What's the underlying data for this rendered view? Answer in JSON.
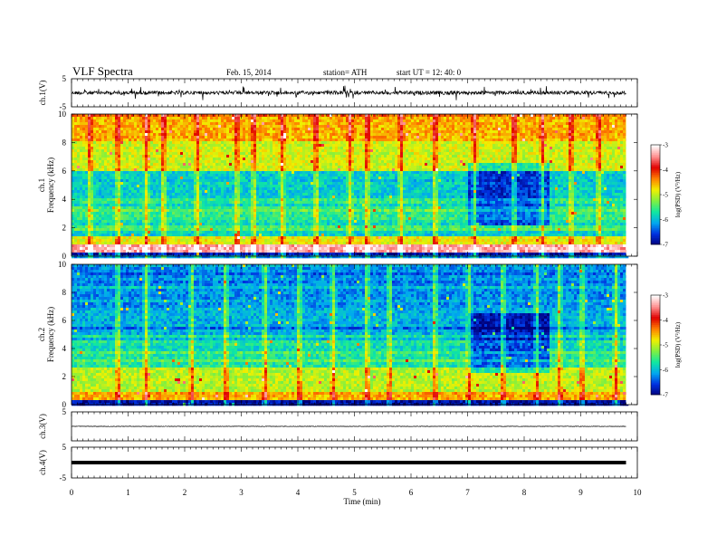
{
  "header": {
    "title": "VLF  Spectra",
    "date": "Feb. 15, 2014",
    "station": "station= ATH",
    "start_ut": "start  UT  =    12: 40: 0"
  },
  "chart_data": [
    {
      "type": "line",
      "panel": "ch1",
      "ylabel": "ch.1(V)",
      "ylim": [
        -5,
        5
      ],
      "y_ticks": [
        "5",
        "-5"
      ],
      "xlim": [
        0,
        10
      ],
      "baseline_v": 0,
      "trace_color": "#000000"
    },
    {
      "type": "heatmap",
      "panel": "ch1_spectrogram",
      "ylabel_lines": [
        "ch.1",
        "Frequency (kHz)"
      ],
      "ylim": [
        0,
        10
      ],
      "y_ticks": [
        "0",
        "2",
        "4",
        "6",
        "8",
        "10"
      ],
      "xlim": [
        0,
        10
      ],
      "data_extent_min": 9.8,
      "colorbar": {
        "label": "log(PSD) (V²/Hz)",
        "range": [
          -7,
          -3
        ],
        "ticks": [
          "-3",
          "-4",
          "-5",
          "-6",
          "-7"
        ]
      },
      "bands": [
        {
          "f": [
            0.0,
            0.3
          ],
          "level": 0.05
        },
        {
          "f": [
            0.3,
            0.8
          ],
          "level": 0.92
        },
        {
          "f": [
            0.8,
            1.4
          ],
          "level": 0.55
        },
        {
          "f": [
            1.4,
            4.2
          ],
          "level": 0.36
        },
        {
          "f": [
            4.2,
            6.0
          ],
          "level": 0.28
        },
        {
          "f": [
            6.0,
            8.0
          ],
          "level": 0.52
        },
        {
          "f": [
            8.0,
            10.0
          ],
          "level": 0.62
        }
      ],
      "quiet_interval_min": [
        7.0,
        8.4
      ],
      "burst_times_min": [
        0.3,
        0.8,
        1.3,
        1.6,
        2.2,
        2.9,
        3.2,
        3.7,
        4.3,
        4.9,
        5.2,
        5.8,
        6.4,
        7.1,
        7.8,
        8.3,
        8.8,
        9.3
      ]
    },
    {
      "type": "heatmap",
      "panel": "ch2_spectrogram",
      "ylabel_lines": [
        "ch.2",
        "Frequency (kHz)"
      ],
      "ylim": [
        0,
        10
      ],
      "y_ticks": [
        "0",
        "2",
        "4",
        "6",
        "8",
        "10"
      ],
      "xlim": [
        0,
        10
      ],
      "data_extent_min": 9.8,
      "colorbar": {
        "label": "log(PSD) (V²/Hz)",
        "range": [
          -7,
          -3
        ],
        "ticks": [
          "-3",
          "-4",
          "-5",
          "-6",
          "-7"
        ]
      },
      "bands": [
        {
          "f": [
            0.0,
            0.3
          ],
          "level": 0.05
        },
        {
          "f": [
            0.3,
            1.0
          ],
          "level": 0.62
        },
        {
          "f": [
            1.0,
            2.6
          ],
          "level": 0.5
        },
        {
          "f": [
            2.6,
            4.5
          ],
          "level": 0.34
        },
        {
          "f": [
            4.5,
            7.0
          ],
          "level": 0.24
        },
        {
          "f": [
            7.0,
            10.0
          ],
          "level": 0.2
        }
      ],
      "quiet_interval_min": [
        7.0,
        8.4
      ],
      "burst_times_min": [
        0.8,
        1.3,
        2.1,
        2.7,
        3.4,
        4.0,
        4.6,
        5.2,
        5.6,
        6.4,
        7.0,
        7.6,
        8.2,
        8.6,
        9.0,
        9.6
      ]
    },
    {
      "type": "line",
      "panel": "ch3",
      "ylabel": "ch.3(V)",
      "ylim": [
        -5,
        5
      ],
      "y_ticks": [
        "5"
      ],
      "xlim": [
        0,
        10
      ],
      "baseline_v": 0,
      "trace_color": "#000000"
    },
    {
      "type": "line",
      "panel": "ch4",
      "ylabel": "ch.4(V)",
      "ylim": [
        -5,
        5
      ],
      "y_ticks": [
        "5",
        "-5"
      ],
      "xlim": [
        0,
        10
      ],
      "baseline_v": 0,
      "trace_color": "#000000"
    }
  ],
  "x_axis": {
    "label": "Time  (min)",
    "ticks": [
      "0",
      "1",
      "2",
      "3",
      "4",
      "5",
      "6",
      "7",
      "8",
      "9",
      "10"
    ]
  },
  "colors": {
    "colormap": [
      "#00007a",
      "#0030e0",
      "#00a8f0",
      "#10e8a0",
      "#80f040",
      "#f0f000",
      "#ff8000",
      "#e00000",
      "#ff9090",
      "#ffffff"
    ]
  }
}
